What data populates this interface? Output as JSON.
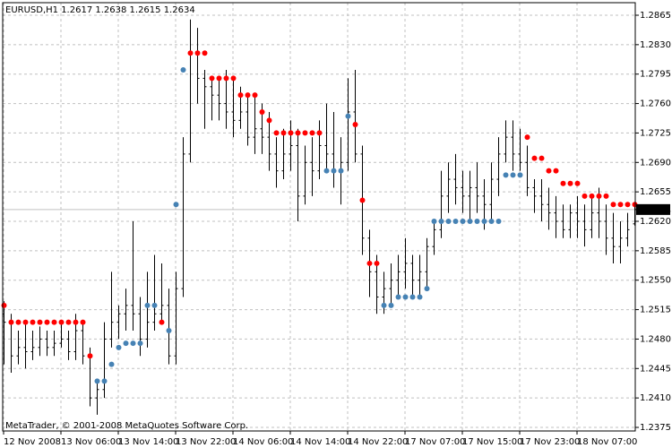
{
  "window": {
    "symbol_line": "EURUSD,H1  1.2617 1.2638 1.2615 1.2634",
    "copyright": "MetaTrader, © 2001-2008 MetaQuotes Software Corp."
  },
  "colors": {
    "background": "#ffffff",
    "grid": "#c0c0c0",
    "bars": "#000000",
    "dot_sell": "#ff0000",
    "dot_buy": "#4682b4",
    "bid_line": "#c0c0c0",
    "bid_label_bg": "#000000",
    "bid_label_text": "#ffffff"
  },
  "chart_data": {
    "type": "ohlc",
    "symbol": "EURUSD",
    "timeframe": "H1",
    "last_bar": {
      "open": 1.2617,
      "high": 1.2638,
      "low": 1.2615,
      "close": 1.2634
    },
    "current_price": 1.2634,
    "current_price_label": "1.2634",
    "ylim": [
      1.2375,
      1.2865
    ],
    "y_ticks": [
      "1.2865",
      "1.2830",
      "1.2795",
      "1.2760",
      "1.2725",
      "1.2690",
      "1.2655",
      "1.2620",
      "1.2585",
      "1.2550",
      "1.2515",
      "1.2480",
      "1.2445",
      "1.2410",
      "1.2375"
    ],
    "x_labels": [
      "12 Nov 2008",
      "13 Nov 06:00",
      "13 Nov 14:00",
      "13 Nov 22:00",
      "14 Nov 06:00",
      "14 Nov 14:00",
      "14 Nov 22:00",
      "17 Nov 07:00",
      "17 Nov 15:00",
      "17 Nov 23:00",
      "18 Nov 07:00"
    ],
    "grid": "dashed",
    "bars": [
      [
        1.251,
        1.2525,
        1.245,
        1.25
      ],
      [
        1.25,
        1.251,
        1.244,
        1.246
      ],
      [
        1.246,
        1.249,
        1.245,
        1.247
      ],
      [
        1.247,
        1.25,
        1.2445,
        1.2465
      ],
      [
        1.2465,
        1.249,
        1.2455,
        1.247
      ],
      [
        1.247,
        1.2495,
        1.246,
        1.248
      ],
      [
        1.248,
        1.249,
        1.246,
        1.247
      ],
      [
        1.247,
        1.249,
        1.246,
        1.2475
      ],
      [
        1.2475,
        1.25,
        1.247,
        1.248
      ],
      [
        1.248,
        1.249,
        1.2455,
        1.2465
      ],
      [
        1.2465,
        1.251,
        1.2455,
        1.249
      ],
      [
        1.249,
        1.25,
        1.245,
        1.246
      ],
      [
        1.246,
        1.247,
        1.24,
        1.241
      ],
      [
        1.241,
        1.243,
        1.239,
        1.242
      ],
      [
        1.242,
        1.25,
        1.241,
        1.248
      ],
      [
        1.248,
        1.256,
        1.247,
        1.25
      ],
      [
        1.25,
        1.252,
        1.248,
        1.251
      ],
      [
        1.251,
        1.254,
        1.249,
        1.252
      ],
      [
        1.252,
        1.262,
        1.249,
        1.251
      ],
      [
        1.251,
        1.253,
        1.246,
        1.248
      ],
      [
        1.248,
        1.256,
        1.247,
        1.25
      ],
      [
        1.25,
        1.258,
        1.249,
        1.251
      ],
      [
        1.251,
        1.257,
        1.25,
        1.252
      ],
      [
        1.252,
        1.254,
        1.245,
        1.246
      ],
      [
        1.246,
        1.256,
        1.245,
        1.254
      ],
      [
        1.254,
        1.272,
        1.253,
        1.27
      ],
      [
        1.27,
        1.286,
        1.269,
        1.282
      ],
      [
        1.282,
        1.285,
        1.276,
        1.279
      ],
      [
        1.279,
        1.28,
        1.273,
        1.278
      ],
      [
        1.278,
        1.279,
        1.274,
        1.277
      ],
      [
        1.277,
        1.279,
        1.274,
        1.276
      ],
      [
        1.276,
        1.28,
        1.273,
        1.275
      ],
      [
        1.275,
        1.279,
        1.272,
        1.274
      ],
      [
        1.274,
        1.278,
        1.273,
        1.275
      ],
      [
        1.275,
        1.277,
        1.271,
        1.272
      ],
      [
        1.272,
        1.277,
        1.27,
        1.273
      ],
      [
        1.273,
        1.276,
        1.27,
        1.272
      ],
      [
        1.272,
        1.275,
        1.268,
        1.27
      ],
      [
        1.27,
        1.272,
        1.266,
        1.268
      ],
      [
        1.268,
        1.273,
        1.267,
        1.27
      ],
      [
        1.27,
        1.274,
        1.268,
        1.271
      ],
      [
        1.271,
        1.273,
        1.262,
        1.265
      ],
      [
        1.265,
        1.271,
        1.264,
        1.269
      ],
      [
        1.269,
        1.272,
        1.265,
        1.268
      ],
      [
        1.268,
        1.274,
        1.267,
        1.271
      ],
      [
        1.271,
        1.276,
        1.268,
        1.27
      ],
      [
        1.27,
        1.275,
        1.266,
        1.268
      ],
      [
        1.268,
        1.272,
        1.264,
        1.269
      ],
      [
        1.269,
        1.279,
        1.268,
        1.275
      ],
      [
        1.275,
        1.28,
        1.269,
        1.27
      ],
      [
        1.27,
        1.271,
        1.258,
        1.26
      ],
      [
        1.26,
        1.261,
        1.253,
        1.256
      ],
      [
        1.256,
        1.258,
        1.251,
        1.253
      ],
      [
        1.253,
        1.256,
        1.251,
        1.254
      ],
      [
        1.254,
        1.257,
        1.252,
        1.255
      ],
      [
        1.255,
        1.258,
        1.253,
        1.256
      ],
      [
        1.256,
        1.26,
        1.254,
        1.257
      ],
      [
        1.257,
        1.258,
        1.253,
        1.255
      ],
      [
        1.255,
        1.258,
        1.253,
        1.256
      ],
      [
        1.256,
        1.26,
        1.254,
        1.259
      ],
      [
        1.259,
        1.262,
        1.258,
        1.261
      ],
      [
        1.261,
        1.268,
        1.26,
        1.265
      ],
      [
        1.265,
        1.269,
        1.263,
        1.267
      ],
      [
        1.267,
        1.27,
        1.264,
        1.266
      ],
      [
        1.266,
        1.268,
        1.263,
        1.265
      ],
      [
        1.265,
        1.268,
        1.262,
        1.266
      ],
      [
        1.266,
        1.269,
        1.263,
        1.265
      ],
      [
        1.265,
        1.267,
        1.261,
        1.264
      ],
      [
        1.264,
        1.269,
        1.262,
        1.267
      ],
      [
        1.267,
        1.272,
        1.265,
        1.27
      ],
      [
        1.27,
        1.274,
        1.269,
        1.272
      ],
      [
        1.272,
        1.274,
        1.268,
        1.27
      ],
      [
        1.27,
        1.273,
        1.268,
        1.269
      ],
      [
        1.269,
        1.271,
        1.265,
        1.266
      ],
      [
        1.266,
        1.267,
        1.263,
        1.265
      ],
      [
        1.265,
        1.267,
        1.262,
        1.264
      ],
      [
        1.264,
        1.266,
        1.261,
        1.263
      ],
      [
        1.263,
        1.265,
        1.26,
        1.262
      ],
      [
        1.262,
        1.264,
        1.26,
        1.261
      ],
      [
        1.261,
        1.264,
        1.26,
        1.263
      ],
      [
        1.263,
        1.265,
        1.26,
        1.262
      ],
      [
        1.262,
        1.264,
        1.259,
        1.261
      ],
      [
        1.261,
        1.265,
        1.26,
        1.263
      ],
      [
        1.263,
        1.266,
        1.26,
        1.262
      ],
      [
        1.262,
        1.264,
        1.258,
        1.26
      ],
      [
        1.26,
        1.263,
        1.257,
        1.259
      ],
      [
        1.259,
        1.262,
        1.257,
        1.26
      ],
      [
        1.26,
        1.263,
        1.259,
        1.261
      ],
      [
        1.2617,
        1.2638,
        1.2615,
        1.2634
      ]
    ],
    "dots": [
      [
        1.252,
        1
      ],
      [
        1.25,
        1
      ],
      [
        1.25,
        1
      ],
      [
        1.25,
        1
      ],
      [
        1.25,
        1
      ],
      [
        1.25,
        1
      ],
      [
        1.25,
        1
      ],
      [
        1.25,
        1
      ],
      [
        1.25,
        1
      ],
      [
        1.25,
        1
      ],
      [
        1.25,
        1
      ],
      [
        1.25,
        1
      ],
      [
        1.246,
        1
      ],
      [
        1.243,
        0
      ],
      [
        1.243,
        0
      ],
      [
        1.245,
        0
      ],
      [
        1.247,
        0
      ],
      [
        1.2475,
        0
      ],
      [
        1.2475,
        0
      ],
      [
        1.2475,
        0
      ],
      [
        1.252,
        0
      ],
      [
        1.252,
        0
      ],
      [
        1.25,
        1
      ],
      [
        1.249,
        0
      ],
      [
        1.264,
        0
      ],
      [
        1.28,
        0
      ],
      [
        1.282,
        1
      ],
      [
        1.282,
        1
      ],
      [
        1.282,
        1
      ],
      [
        1.279,
        1
      ],
      [
        1.279,
        1
      ],
      [
        1.279,
        1
      ],
      [
        1.279,
        1
      ],
      [
        1.277,
        1
      ],
      [
        1.277,
        1
      ],
      [
        1.277,
        1
      ],
      [
        1.275,
        1
      ],
      [
        1.274,
        1
      ],
      [
        1.2725,
        1
      ],
      [
        1.2725,
        1
      ],
      [
        1.2725,
        1
      ],
      [
        1.2725,
        1
      ],
      [
        1.2725,
        1
      ],
      [
        1.2725,
        1
      ],
      [
        1.2725,
        1
      ],
      [
        1.268,
        0
      ],
      [
        1.268,
        0
      ],
      [
        1.268,
        0
      ],
      [
        1.2745,
        0
      ],
      [
        1.2735,
        1
      ],
      [
        1.2645,
        1
      ],
      [
        1.257,
        1
      ],
      [
        1.257,
        1
      ],
      [
        1.252,
        0
      ],
      [
        1.252,
        0
      ],
      [
        1.253,
        0
      ],
      [
        1.253,
        0
      ],
      [
        1.253,
        0
      ],
      [
        1.253,
        0
      ],
      [
        1.254,
        0
      ],
      [
        1.262,
        0
      ],
      [
        1.262,
        0
      ],
      [
        1.262,
        0
      ],
      [
        1.262,
        0
      ],
      [
        1.262,
        0
      ],
      [
        1.262,
        0
      ],
      [
        1.262,
        0
      ],
      [
        1.262,
        0
      ],
      [
        1.262,
        0
      ],
      [
        1.262,
        0
      ],
      [
        1.2675,
        0
      ],
      [
        1.2675,
        0
      ],
      [
        1.2675,
        0
      ],
      [
        1.272,
        1
      ],
      [
        1.2695,
        1
      ],
      [
        1.2695,
        1
      ],
      [
        1.268,
        1
      ],
      [
        1.268,
        1
      ],
      [
        1.2665,
        1
      ],
      [
        1.2665,
        1
      ],
      [
        1.2665,
        1
      ],
      [
        1.265,
        1
      ],
      [
        1.265,
        1
      ],
      [
        1.265,
        1
      ],
      [
        1.265,
        1
      ],
      [
        1.264,
        1
      ],
      [
        1.264,
        1
      ],
      [
        1.264,
        1
      ],
      [
        1.264,
        1
      ]
    ]
  }
}
